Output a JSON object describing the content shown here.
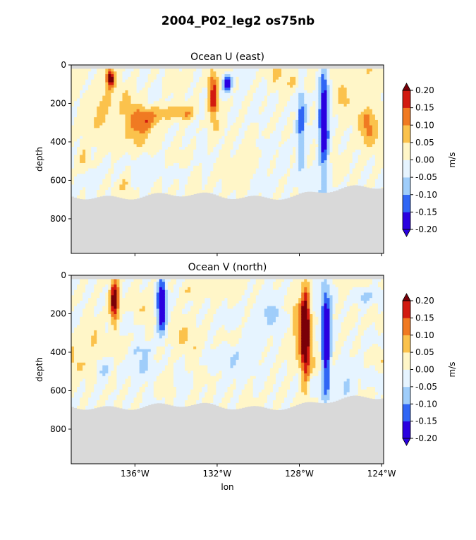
{
  "suptitle": "2004_P02_leg2 os75nb",
  "chart_data": [
    {
      "type": "heatmap",
      "title": "Ocean U (east)",
      "xlabel": "",
      "ylabel": "depth",
      "x_range_deg_lon": [
        -139.1,
        -123.9
      ],
      "y_range_depth": [
        980,
        0
      ],
      "yticks": [
        0,
        200,
        400,
        600,
        800
      ],
      "ytick_labels": [
        "0",
        "200",
        "400",
        "600",
        "800"
      ],
      "xticks": [
        -136,
        -132,
        -128,
        -124
      ],
      "xtick_labels": [],
      "colorbar": {
        "label": "m/s",
        "levels": [
          -0.2,
          -0.15,
          -0.1,
          -0.05,
          0.0,
          0.05,
          0.1,
          0.15,
          0.2
        ],
        "tick_labels": [
          "-0.20",
          "-0.15",
          "-0.10",
          "-0.05",
          "0.00",
          "0.05",
          "0.10",
          "0.15",
          "0.20"
        ],
        "extend": "both"
      },
      "features": [
        {
          "lon": -137.2,
          "depth_top": 20,
          "depth_bottom": 120,
          "value": 0.2
        },
        {
          "lon": -132.2,
          "depth_top": 40,
          "depth_bottom": 260,
          "value": 0.15
        },
        {
          "lon": -131.5,
          "depth_top": 50,
          "depth_bottom": 130,
          "value": -0.2
        },
        {
          "lon": -126.8,
          "depth_top": 40,
          "depth_bottom": 520,
          "value": -0.2
        },
        {
          "lon": -127.9,
          "depth_top": 40,
          "depth_bottom": 560,
          "value": -0.1
        }
      ]
    },
    {
      "type": "heatmap",
      "title": "Ocean V (north)",
      "xlabel": "lon",
      "ylabel": "depth",
      "x_range_deg_lon": [
        -139.1,
        -123.9
      ],
      "y_range_depth": [
        980,
        0
      ],
      "yticks": [
        0,
        200,
        400,
        600,
        800
      ],
      "ytick_labels": [
        "0",
        "200",
        "400",
        "600",
        "800"
      ],
      "xticks": [
        -136,
        -132,
        -128,
        -124
      ],
      "xtick_labels": [
        "136°W",
        "132°W",
        "128°W",
        "124°W"
      ],
      "colorbar": {
        "label": "m/s",
        "levels": [
          -0.2,
          -0.15,
          -0.1,
          -0.05,
          0.0,
          0.05,
          0.1,
          0.15,
          0.2
        ],
        "tick_labels": [
          "-0.20",
          "-0.15",
          "-0.10",
          "-0.05",
          "0.00",
          "0.05",
          "0.10",
          "0.15",
          "0.20"
        ],
        "extend": "both"
      },
      "features": [
        {
          "lon": -137.0,
          "depth_top": 20,
          "depth_bottom": 250,
          "value": 0.2
        },
        {
          "lon": -134.7,
          "depth_top": 20,
          "depth_bottom": 300,
          "value": -0.2
        },
        {
          "lon": -127.7,
          "depth_top": 20,
          "depth_bottom": 580,
          "value": 0.2
        },
        {
          "lon": -126.7,
          "depth_top": 80,
          "depth_bottom": 600,
          "value": -0.2
        }
      ]
    }
  ],
  "colors": {
    "levels_fill": [
      "#2a00e0",
      "#3066f5",
      "#9fcdfa",
      "#e6f4ff",
      "#fff6c8",
      "#fbc24c",
      "#f07a22",
      "#d21a10",
      "#7a0008"
    ],
    "land": "#d9d9d9"
  }
}
